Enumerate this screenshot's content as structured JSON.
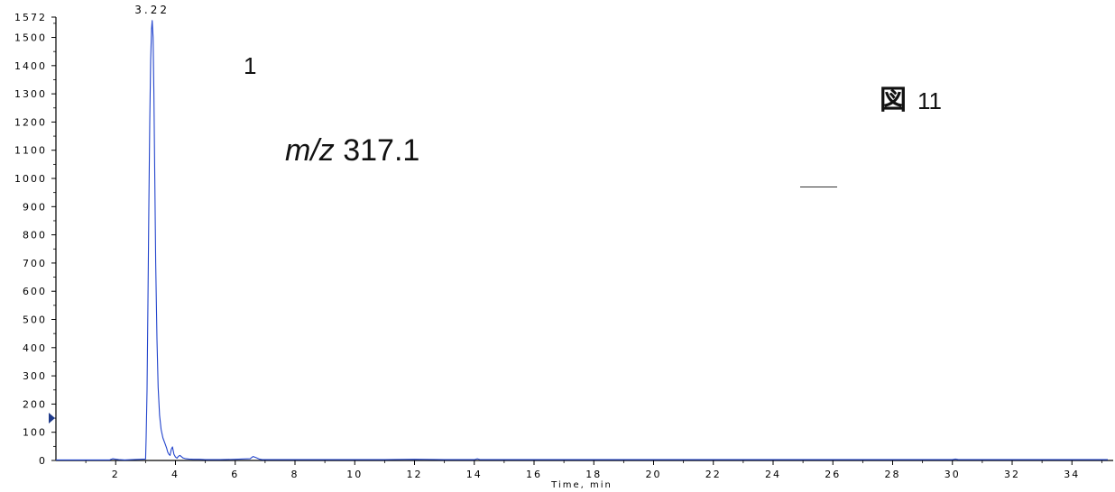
{
  "figure": {
    "compound_label": "1",
    "mz_prefix": "m/z",
    "mz_value": "317.1",
    "figure_kanji": "図",
    "figure_number": "11"
  },
  "colors": {
    "trace": "#2244cc",
    "axis": "#000000",
    "marker": "#1f3a8a"
  },
  "chart_data": {
    "type": "line",
    "title": "",
    "xlabel": "Time, min",
    "ylabel": "",
    "xlim": [
      0,
      35.2
    ],
    "ylim": [
      0,
      1572
    ],
    "x_ticks": [
      2,
      4,
      6,
      8,
      10,
      12,
      14,
      16,
      18,
      20,
      22,
      24,
      26,
      28,
      30,
      32,
      34
    ],
    "y_ticks": [
      0,
      100,
      200,
      300,
      400,
      500,
      600,
      700,
      800,
      900,
      1000,
      1100,
      1200,
      1300,
      1400,
      1500,
      1572
    ],
    "peak_label": "3.22",
    "left_marker_value": 150,
    "series": [
      {
        "x": [
          0,
          1.8,
          1.9,
          2.1,
          2.3,
          3.0,
          3.02,
          3.05,
          3.08,
          3.11,
          3.14,
          3.17,
          3.2,
          3.22,
          3.25,
          3.28,
          3.31,
          3.34,
          3.38,
          3.42,
          3.47,
          3.52,
          3.58,
          3.65,
          3.7,
          3.74,
          3.78,
          3.82,
          3.86,
          3.9,
          3.95,
          4.0,
          4.05,
          4.1,
          4.15,
          4.25,
          4.35,
          4.45,
          4.6,
          4.8,
          5.0,
          5.5,
          6.0,
          6.5,
          6.6,
          6.7,
          6.8,
          6.9,
          7.2,
          8.0,
          9.0,
          10.0,
          11.0,
          12.0,
          13.0,
          14.0,
          14.1,
          14.2,
          15.0,
          16.0,
          17.0,
          18.0,
          19.0,
          20.0,
          21.0,
          22.0,
          23.0,
          24.0,
          25.0,
          26.0,
          27.0,
          28.0,
          29.0,
          30.0,
          30.1,
          30.2,
          31.0,
          32.0,
          33.0,
          34.0,
          35.2
        ],
        "y": [
          2,
          2,
          6,
          3,
          2,
          5,
          80,
          250,
          560,
          900,
          1200,
          1420,
          1530,
          1560,
          1500,
          1300,
          1000,
          700,
          430,
          260,
          160,
          110,
          80,
          60,
          45,
          30,
          22,
          18,
          40,
          48,
          22,
          12,
          8,
          15,
          18,
          9,
          6,
          5,
          4,
          4,
          3,
          3,
          4,
          6,
          14,
          10,
          5,
          3,
          3,
          3,
          3,
          3,
          3,
          4,
          3,
          3,
          6,
          3,
          3,
          3,
          3,
          3,
          3,
          3,
          3,
          3,
          3,
          3,
          3,
          3,
          3,
          3,
          3,
          3,
          5,
          3,
          3,
          3,
          3,
          3,
          3
        ]
      }
    ]
  }
}
